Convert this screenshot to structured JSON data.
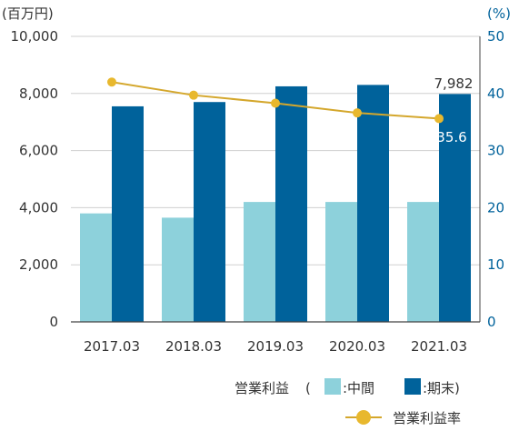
{
  "chart_data": {
    "type": "bar",
    "categories": [
      "2017.03",
      "2018.03",
      "2019.03",
      "2020.03",
      "2021.03"
    ],
    "series": [
      {
        "name": "中間",
        "axis": "left",
        "color": "#8dd1db",
        "values": [
          3800,
          3650,
          4200,
          4200,
          4200
        ]
      },
      {
        "name": "期末",
        "axis": "left",
        "color": "#00629b",
        "values": [
          7550,
          7700,
          8250,
          8300,
          7982
        ]
      },
      {
        "name": "営業利益率",
        "axis": "right",
        "type": "line",
        "color": "#d4a72c",
        "values": [
          42,
          39.7,
          38.3,
          36.6,
          35.6
        ]
      }
    ],
    "y_left": {
      "unit": "(百万円)",
      "ylim": [
        0,
        10000
      ],
      "ticks": [
        "0",
        "2,000",
        "4,000",
        "6,000",
        "8,000",
        "10,000"
      ]
    },
    "y_right": {
      "unit": "(%)",
      "ylim": [
        0,
        50
      ],
      "ticks": [
        "0",
        "10",
        "20",
        "30",
        "40",
        "50"
      ],
      "color": "#00629b"
    },
    "data_labels": {
      "last_bar": "7,982",
      "last_rate": "35.6"
    },
    "legend": {
      "prefix": "営業利益",
      "open": "(",
      "item1": ":中間",
      "item2": ":期末)",
      "line_label": "営業利益率",
      "placement": "bottom-right"
    },
    "grid": true
  }
}
